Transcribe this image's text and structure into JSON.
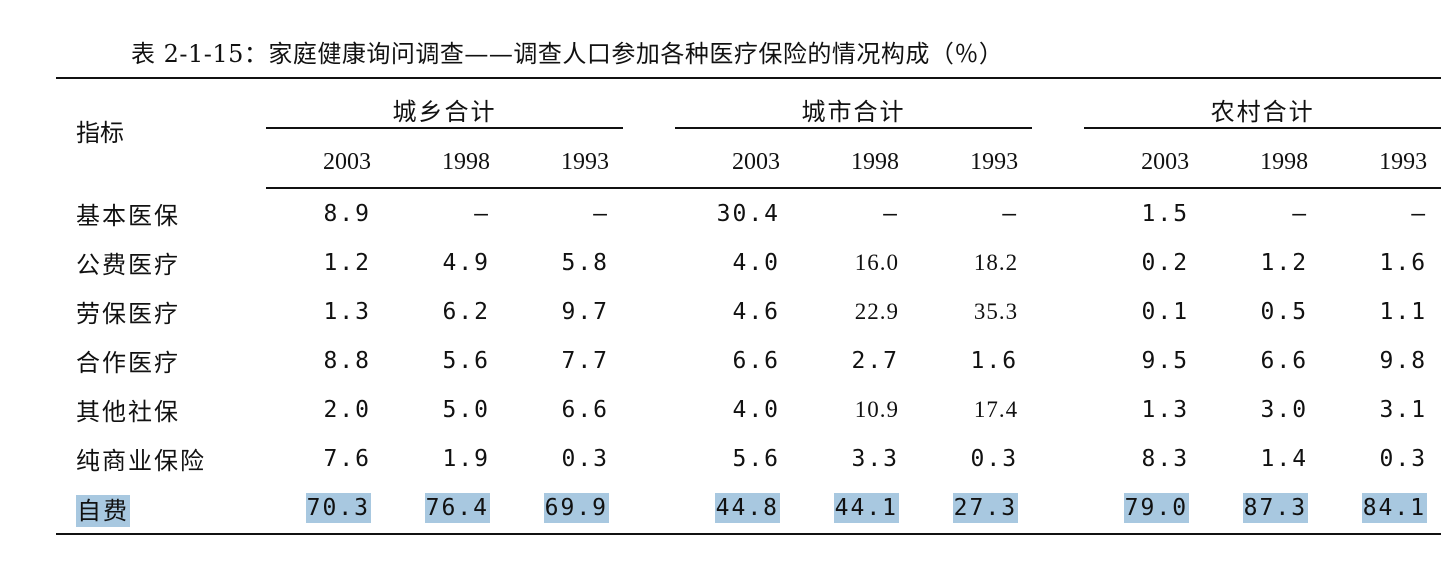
{
  "caption": "表 2-1-15：家庭健康询问调查——调查人口参加各种医疗保险的情况构成（％）",
  "table": {
    "label_header": "指标",
    "groups": [
      {
        "title": "城乡合计",
        "years": [
          "2003",
          "1998",
          "1993"
        ]
      },
      {
        "title": "城市合计",
        "years": [
          "2003",
          "1998",
          "1993"
        ]
      },
      {
        "title": "农村合计",
        "years": [
          "2003",
          "1998",
          "1993"
        ]
      }
    ],
    "rows": [
      {
        "label": "基本医保",
        "values": [
          "8.9",
          "—",
          "—",
          "30.4",
          "—",
          "—",
          "1.5",
          "—",
          "—"
        ]
      },
      {
        "label": "公费医疗",
        "values": [
          "1.2",
          "4.9",
          "5.8",
          "4.0",
          "16.0",
          "18.2",
          "0.2",
          "1.2",
          "1.6"
        ]
      },
      {
        "label": "劳保医疗",
        "values": [
          "1.3",
          "6.2",
          "9.7",
          "4.6",
          "22.9",
          "35.3",
          "0.1",
          "0.5",
          "1.1"
        ]
      },
      {
        "label": "合作医疗",
        "values": [
          "8.8",
          "5.6",
          "7.7",
          "6.6",
          "2.7",
          "1.6",
          "9.5",
          "6.6",
          "9.8"
        ]
      },
      {
        "label": "其他社保",
        "values": [
          "2.0",
          "5.0",
          "6.6",
          "4.0",
          "10.9",
          "17.4",
          "1.3",
          "3.0",
          "3.1"
        ]
      },
      {
        "label": "纯商业保险",
        "values": [
          "7.6",
          "1.9",
          "0.3",
          "5.6",
          "3.3",
          "0.3",
          "8.3",
          "1.4",
          "0.3"
        ]
      },
      {
        "label": "自费",
        "values": [
          "70.3",
          "76.4",
          "69.9",
          "44.8",
          "44.1",
          "27.3",
          "79.0",
          "87.3",
          "84.1"
        ]
      }
    ],
    "highlight_color": "#a8c8e0"
  }
}
